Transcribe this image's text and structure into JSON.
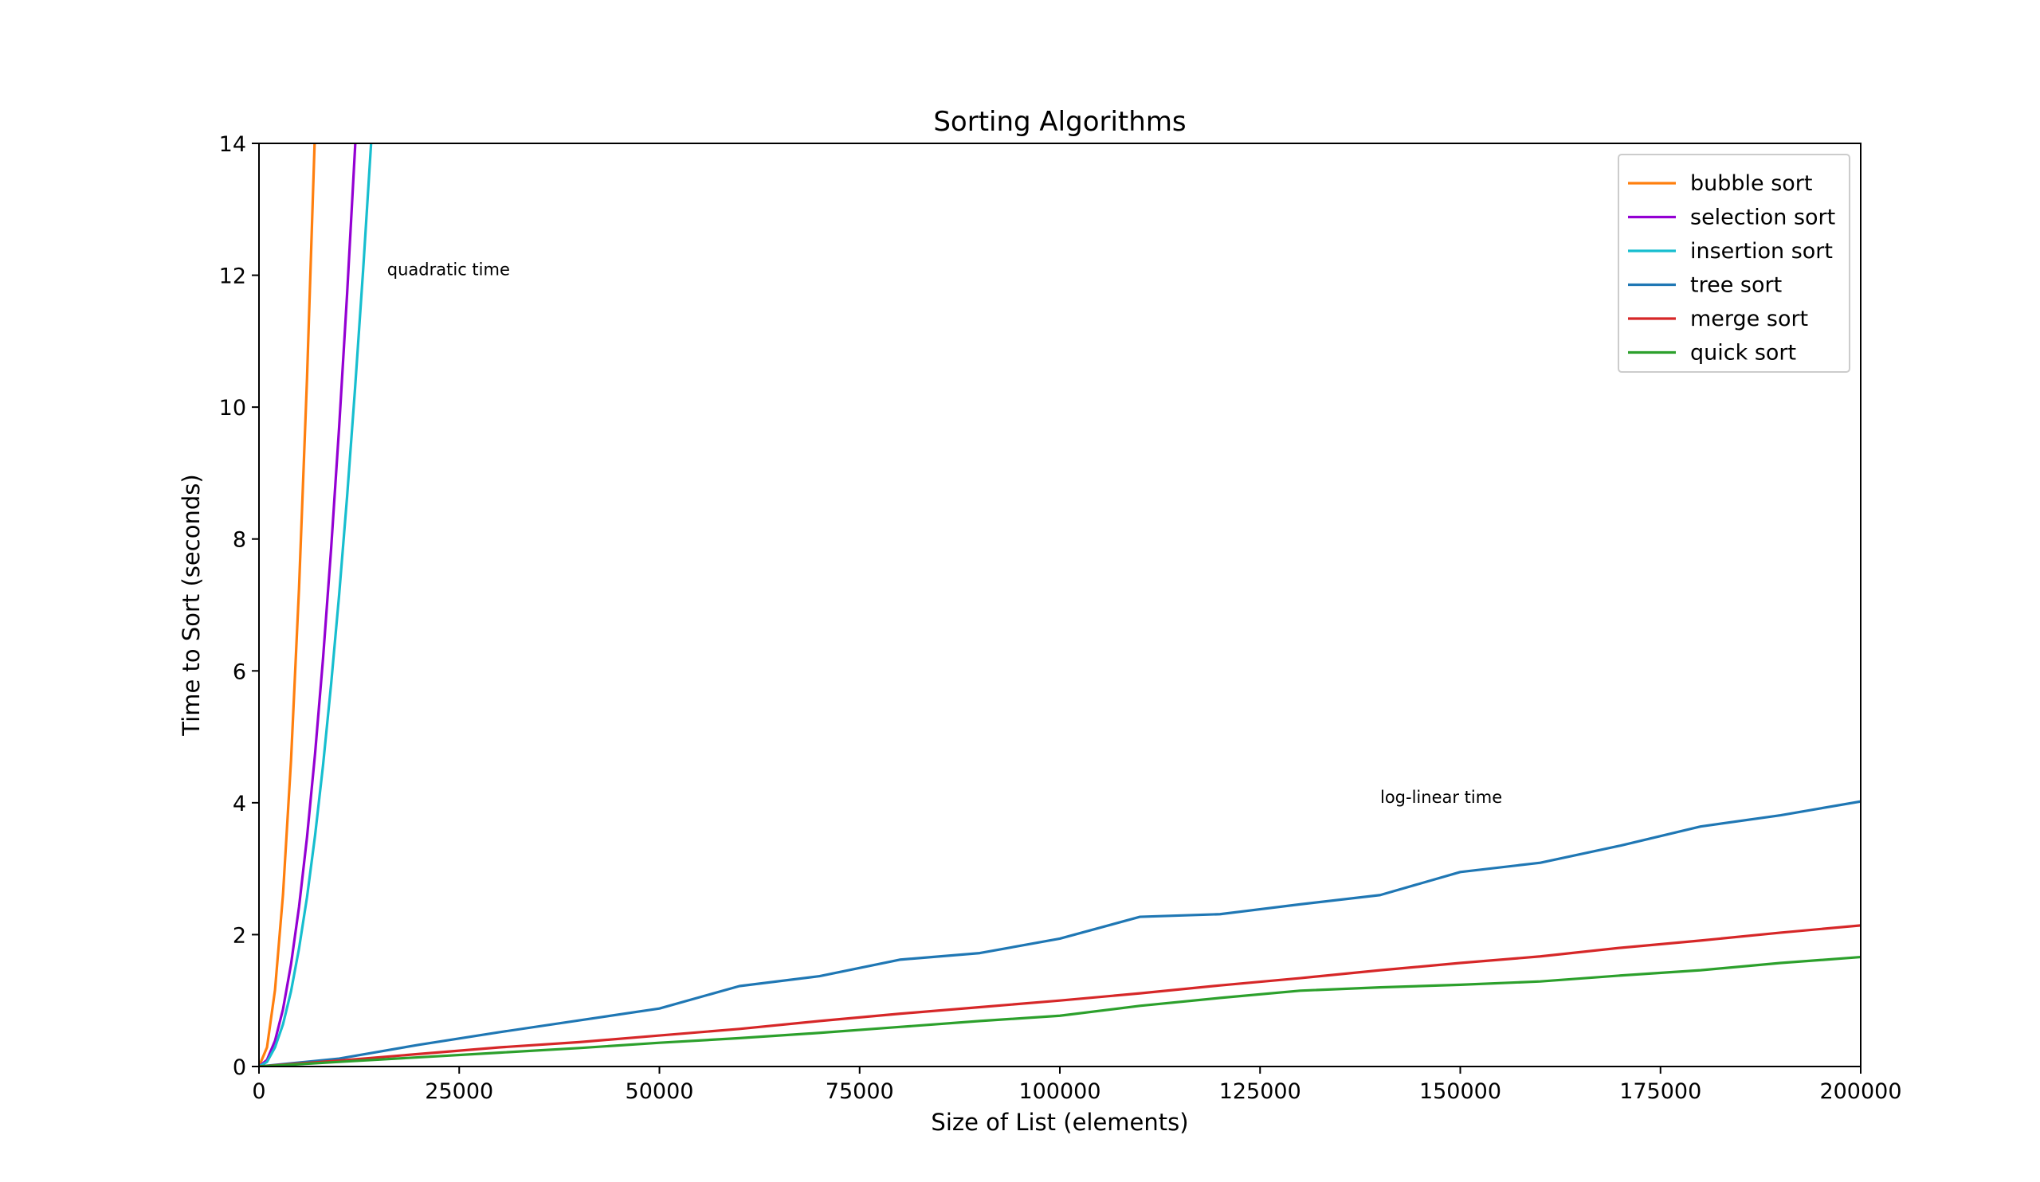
{
  "chart_data": {
    "type": "line",
    "title": "Sorting Algorithms",
    "xlabel": "Size of List (elements)",
    "ylabel": "Time to Sort (seconds)",
    "xlim": [
      0,
      200000
    ],
    "ylim": [
      0,
      14
    ],
    "xticks": [
      0,
      25000,
      50000,
      75000,
      100000,
      125000,
      150000,
      175000,
      200000
    ],
    "xtick_labels": [
      "0",
      "25000",
      "50000",
      "75000",
      "100000",
      "125000",
      "150000",
      "175000",
      "200000"
    ],
    "yticks": [
      0,
      2,
      4,
      6,
      8,
      10,
      12,
      14
    ],
    "ytick_labels": [
      "0",
      "2",
      "4",
      "6",
      "8",
      "10",
      "12",
      "14"
    ],
    "grid": false,
    "legend_position": "top-right",
    "annotations": [
      {
        "text": "quadratic time",
        "x": 16000,
        "y": 12
      },
      {
        "text": "log-linear time",
        "x": 140000,
        "y": 4
      }
    ],
    "series": [
      {
        "name": "bubble sort",
        "color": "#ff7f0e",
        "x": [
          0,
          1000,
          2000,
          3000,
          4000,
          5000,
          6000,
          7000,
          8000
        ],
        "y": [
          0,
          0.29,
          1.16,
          2.61,
          4.64,
          7.25,
          10.44,
          14.21,
          18.56
        ]
      },
      {
        "name": "selection sort",
        "color": "#9400d3",
        "x": [
          0,
          1000,
          2000,
          3000,
          4000,
          5000,
          6000,
          7000,
          8000,
          9000,
          10000,
          11000,
          12000,
          13000
        ],
        "y": [
          0,
          0.1,
          0.39,
          0.87,
          1.55,
          2.42,
          3.48,
          4.74,
          6.19,
          7.84,
          9.68,
          11.71,
          13.94,
          16.35
        ]
      },
      {
        "name": "insertion sort",
        "color": "#17becf",
        "x": [
          0,
          1000,
          2000,
          3000,
          4000,
          5000,
          6000,
          7000,
          8000,
          9000,
          10000,
          11000,
          12000,
          13000,
          14000,
          15000
        ],
        "y": [
          0,
          0.07,
          0.29,
          0.64,
          1.14,
          1.79,
          2.57,
          3.5,
          4.57,
          5.79,
          7.14,
          8.64,
          10.29,
          12.07,
          14.0,
          16.07
        ]
      },
      {
        "name": "tree sort",
        "color": "#1f77b4",
        "x": [
          0,
          10000,
          20000,
          30000,
          40000,
          50000,
          60000,
          70000,
          80000,
          90000,
          100000,
          110000,
          120000,
          130000,
          140000,
          150000,
          160000,
          170000,
          180000,
          190000,
          200000
        ],
        "y": [
          0,
          0.12,
          0.33,
          0.52,
          0.7,
          0.88,
          1.22,
          1.37,
          1.62,
          1.72,
          1.94,
          2.27,
          2.31,
          2.46,
          2.6,
          2.95,
          3.09,
          3.35,
          3.64,
          3.81,
          4.02
        ]
      },
      {
        "name": "merge sort",
        "color": "#d62728",
        "x": [
          0,
          10000,
          20000,
          30000,
          40000,
          50000,
          60000,
          70000,
          80000,
          90000,
          100000,
          110000,
          120000,
          130000,
          140000,
          150000,
          160000,
          170000,
          180000,
          190000,
          200000
        ],
        "y": [
          0,
          0.09,
          0.19,
          0.29,
          0.37,
          0.47,
          0.57,
          0.69,
          0.8,
          0.9,
          1.0,
          1.11,
          1.23,
          1.34,
          1.46,
          1.57,
          1.67,
          1.8,
          1.91,
          2.03,
          2.14
        ]
      },
      {
        "name": "quick sort",
        "color": "#2ca02c",
        "x": [
          0,
          10000,
          20000,
          30000,
          40000,
          50000,
          60000,
          70000,
          80000,
          90000,
          100000,
          110000,
          120000,
          130000,
          140000,
          150000,
          160000,
          170000,
          180000,
          190000,
          200000
        ],
        "y": [
          0,
          0.07,
          0.14,
          0.21,
          0.28,
          0.36,
          0.43,
          0.51,
          0.6,
          0.69,
          0.77,
          0.92,
          1.04,
          1.15,
          1.2,
          1.24,
          1.29,
          1.38,
          1.46,
          1.57,
          1.66
        ]
      }
    ]
  }
}
